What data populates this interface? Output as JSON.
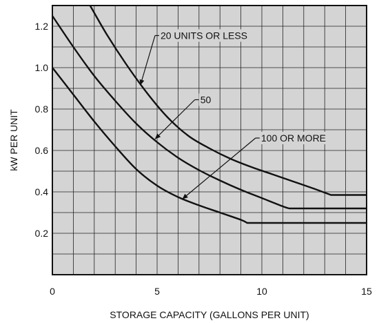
{
  "chart_data": {
    "type": "line",
    "title": "",
    "xlabel": "STORAGE CAPACITY (GALLONS PER UNIT)",
    "ylabel": "kW PER UNIT",
    "xlim": [
      0,
      15
    ],
    "ylim": [
      0,
      1.3
    ],
    "grid": true,
    "plot_background": "#d4d4d4",
    "line_color": "#111111",
    "x_ticks": [
      {
        "value": 0,
        "label": "0"
      },
      {
        "value": 5,
        "label": "5"
      },
      {
        "value": 10,
        "label": "10"
      },
      {
        "value": 15,
        "label": "15"
      }
    ],
    "y_ticks": [
      {
        "value": 0.2,
        "label": "0.2"
      },
      {
        "value": 0.4,
        "label": "0.4"
      },
      {
        "value": 0.6,
        "label": "0.6"
      },
      {
        "value": 0.8,
        "label": "0.8"
      },
      {
        "value": 1.0,
        "label": "1.0"
      },
      {
        "value": 1.2,
        "label": "1.2"
      }
    ],
    "series": [
      {
        "name": "20 UNITS OR LESS",
        "x": [
          1.8,
          2.6,
          3.5,
          4.5,
          5.5,
          6.5,
          7.5,
          8.5,
          9.5,
          10.5,
          11.5,
          12.5,
          13.3,
          15
        ],
        "y": [
          1.3,
          1.16,
          1.02,
          0.88,
          0.76,
          0.67,
          0.61,
          0.56,
          0.52,
          0.485,
          0.45,
          0.415,
          0.385,
          0.385
        ]
      },
      {
        "name": "50",
        "x": [
          0,
          1,
          2,
          3,
          4,
          5,
          6,
          7,
          8,
          9,
          10,
          11,
          11.3,
          15
        ],
        "y": [
          1.25,
          1.1,
          0.96,
          0.84,
          0.73,
          0.64,
          0.565,
          0.505,
          0.455,
          0.41,
          0.37,
          0.33,
          0.32,
          0.32
        ]
      },
      {
        "name": "100 OR MORE",
        "x": [
          0,
          1,
          2,
          3,
          4,
          5,
          6,
          7,
          8,
          9,
          9.3,
          15
        ],
        "y": [
          1.0,
          0.87,
          0.74,
          0.62,
          0.51,
          0.43,
          0.375,
          0.335,
          0.3,
          0.265,
          0.25,
          0.25
        ]
      }
    ],
    "annotations": [
      {
        "text": "20 UNITS OR LESS",
        "series": 0,
        "point_x": 4.2,
        "point_y": 0.915,
        "label_x": 4.9,
        "label_y": 1.155
      },
      {
        "text": "50",
        "series": 1,
        "point_x": 4.9,
        "point_y": 0.655,
        "label_x": 6.8,
        "label_y": 0.845
      },
      {
        "text": "100 OR MORE",
        "series": 2,
        "point_x": 6.2,
        "point_y": 0.365,
        "label_x": 9.7,
        "label_y": 0.66
      }
    ]
  }
}
